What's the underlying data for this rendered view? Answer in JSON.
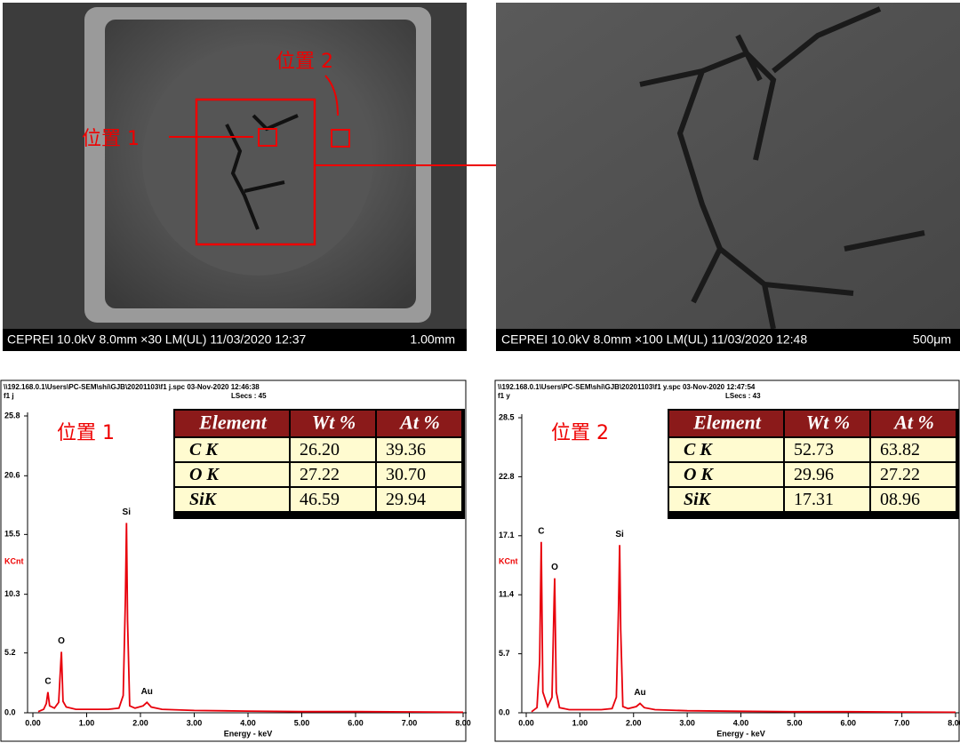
{
  "images": [
    {
      "caption": "CEPREI  10.0kV 8.0mm ×30 LM(UL) 11/03/2020 12:37",
      "scale": "1.00mm",
      "labels": [
        "位置 1",
        "位置 2"
      ]
    },
    {
      "caption": "CEPREI  10.0kV 8.0mm ×100 LM(UL) 11/03/2020 12:48",
      "scale": "500μm"
    }
  ],
  "chart_data": [
    {
      "type": "line",
      "file_line": "\\\\192.168.0.1\\Users\\PC-SEM\\shi\\GJB\\20201103\\f1 j.spc  03-Nov-2020 12:46:38",
      "spectrum_name": "f1 j",
      "lsecs": "LSecs : 45",
      "annotation": "位置 1",
      "ylabel": "KCnt",
      "xlabel": "Energy - keV",
      "color": "#e8000b",
      "x": [
        0.1,
        0.2,
        0.25,
        0.28,
        0.31,
        0.4,
        0.48,
        0.52,
        0.53,
        0.56,
        0.62,
        0.8,
        1.0,
        1.2,
        1.4,
        1.6,
        1.68,
        1.72,
        1.74,
        1.76,
        1.8,
        1.9,
        2.05,
        2.12,
        2.2,
        2.4,
        3.0,
        4.0,
        5.0,
        6.0,
        7.0,
        8.0
      ],
      "values": [
        0.1,
        0.3,
        0.8,
        1.8,
        0.6,
        0.4,
        0.9,
        4.5,
        5.3,
        1.0,
        0.5,
        0.3,
        0.3,
        0.3,
        0.3,
        0.4,
        1.5,
        10,
        16.5,
        8,
        0.6,
        0.4,
        0.6,
        0.9,
        0.5,
        0.3,
        0.2,
        0.15,
        0.1,
        0.1,
        0.08,
        0.05
      ],
      "peak_labels": [
        {
          "label": "C",
          "x": 0.28
        },
        {
          "label": "O",
          "x": 0.53
        },
        {
          "label": "Si",
          "x": 1.74
        },
        {
          "label": "Au",
          "x": 2.12
        }
      ],
      "xlim": [
        0,
        8.0
      ],
      "ylim": [
        0,
        25.8
      ],
      "xticks": [
        {
          "value": 0,
          "label": "0.00"
        },
        {
          "value": 1,
          "label": "1.00"
        },
        {
          "value": 2,
          "label": "2.00"
        },
        {
          "value": 3,
          "label": "3.00"
        },
        {
          "value": 4,
          "label": "4.00"
        },
        {
          "value": 5,
          "label": "5.00"
        },
        {
          "value": 6,
          "label": "6.00"
        },
        {
          "value": 7,
          "label": "7.00"
        },
        {
          "value": 8,
          "label": "8.00"
        }
      ],
      "yticks": [
        {
          "value": 0,
          "label": "0.0"
        },
        5.2,
        10.3,
        15.5,
        20.6,
        25.8
      ],
      "table": {
        "columns": [
          "Element",
          "Wt %",
          "At %"
        ],
        "rows": [
          [
            "C K",
            "26.20",
            "39.36"
          ],
          [
            "O K",
            "27.22",
            "30.70"
          ],
          [
            "SiK",
            "46.59",
            "29.94"
          ]
        ]
      }
    },
    {
      "type": "line",
      "file_line": "\\\\192.168.0.1\\Users\\PC-SEM\\shi\\GJB\\20201103\\f1 y.spc  03-Nov-2020 12:47:54",
      "spectrum_name": "f1 y",
      "lsecs": "LSecs : 43",
      "annotation": "位置 2",
      "ylabel": "KCnt",
      "xlabel": "Energy - keV",
      "color": "#e8000b",
      "x": [
        0.1,
        0.2,
        0.25,
        0.28,
        0.31,
        0.4,
        0.48,
        0.52,
        0.53,
        0.56,
        0.62,
        0.8,
        1.0,
        1.2,
        1.4,
        1.6,
        1.68,
        1.72,
        1.74,
        1.76,
        1.8,
        1.9,
        2.05,
        2.12,
        2.2,
        2.4,
        3.0,
        4.0,
        5.0,
        6.0,
        7.0,
        8.0
      ],
      "values": [
        0.1,
        0.5,
        5,
        16.5,
        2,
        0.6,
        1.5,
        11,
        13,
        2,
        0.5,
        0.3,
        0.3,
        0.3,
        0.3,
        0.4,
        1.5,
        10,
        16.2,
        8,
        0.6,
        0.4,
        0.6,
        0.9,
        0.5,
        0.3,
        0.2,
        0.15,
        0.1,
        0.1,
        0.08,
        0.05
      ],
      "peak_labels": [
        {
          "label": "C",
          "x": 0.28
        },
        {
          "label": "O",
          "x": 0.53
        },
        {
          "label": "Si",
          "x": 1.74
        },
        {
          "label": "Au",
          "x": 2.12
        }
      ],
      "xlim": [
        0,
        8.0
      ],
      "ylim": [
        0,
        28.5
      ],
      "xticks": [
        {
          "value": 0,
          "label": "0.00"
        },
        {
          "value": 1,
          "label": "1.00"
        },
        {
          "value": 2,
          "label": "2.00"
        },
        {
          "value": 3,
          "label": "3.00"
        },
        {
          "value": 4,
          "label": "4.00"
        },
        {
          "value": 5,
          "label": "5.00"
        },
        {
          "value": 6,
          "label": "6.00"
        },
        {
          "value": 7,
          "label": "7.00"
        },
        {
          "value": 8,
          "label": "8.00"
        }
      ],
      "yticks": [
        {
          "value": 0,
          "label": "0.0"
        },
        5.7,
        11.4,
        17.1,
        22.8,
        28.5
      ],
      "table": {
        "columns": [
          "Element",
          "Wt %",
          "At %"
        ],
        "rows": [
          [
            "C K",
            "52.73",
            "63.82"
          ],
          [
            "O K",
            "29.96",
            "27.22"
          ],
          [
            "SiK",
            "17.31",
            "08.96"
          ]
        ]
      }
    }
  ]
}
